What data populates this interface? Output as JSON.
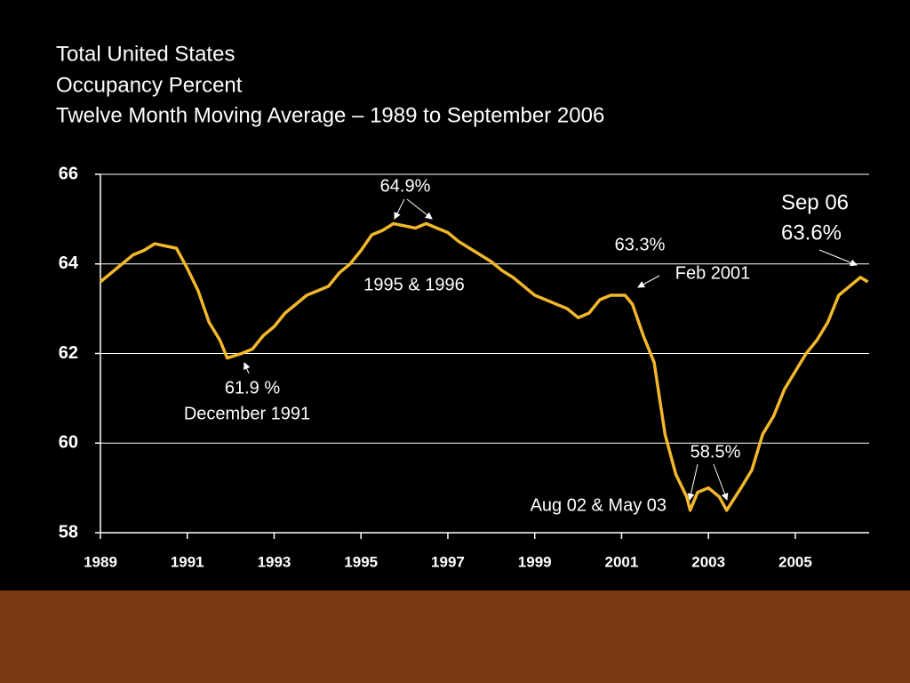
{
  "chart_data": {
    "type": "line",
    "title": [
      "Total United States",
      "Occupancy Percent",
      "Twelve Month Moving Average – 1989 to September 2006"
    ],
    "x": [
      1989.0,
      1989.25,
      1989.5,
      1989.75,
      1990.0,
      1990.25,
      1990.5,
      1990.75,
      1991.0,
      1991.25,
      1991.5,
      1991.75,
      1991.92,
      1992.25,
      1992.5,
      1992.75,
      1993.0,
      1993.25,
      1993.5,
      1993.75,
      1994.0,
      1994.25,
      1994.5,
      1994.75,
      1995.0,
      1995.25,
      1995.5,
      1995.75,
      1996.0,
      1996.25,
      1996.5,
      1996.75,
      1997.0,
      1997.25,
      1997.5,
      1997.75,
      1998.0,
      1998.25,
      1998.5,
      1998.75,
      1999.0,
      1999.25,
      1999.5,
      1999.75,
      2000.0,
      2000.25,
      2000.5,
      2000.75,
      2001.08,
      2001.25,
      2001.5,
      2001.75,
      2002.0,
      2002.25,
      2002.5,
      2002.58,
      2002.75,
      2003.0,
      2003.25,
      2003.42,
      2003.75,
      2004.0,
      2004.25,
      2004.5,
      2004.75,
      2005.0,
      2005.25,
      2005.5,
      2005.75,
      2006.0,
      2006.25,
      2006.5,
      2006.67
    ],
    "series": [
      {
        "name": "Occupancy",
        "color": "#f2b72c",
        "values": [
          63.6,
          63.8,
          64.0,
          64.2,
          64.3,
          64.45,
          64.4,
          64.35,
          63.9,
          63.4,
          62.7,
          62.3,
          61.9,
          62.0,
          62.1,
          62.4,
          62.6,
          62.9,
          63.1,
          63.3,
          63.4,
          63.5,
          63.8,
          64.0,
          64.3,
          64.65,
          64.75,
          64.9,
          64.85,
          64.8,
          64.9,
          64.8,
          64.7,
          64.5,
          64.35,
          64.2,
          64.05,
          63.85,
          63.7,
          63.5,
          63.3,
          63.2,
          63.1,
          63.0,
          62.8,
          62.9,
          63.2,
          63.3,
          63.3,
          63.1,
          62.4,
          61.8,
          60.2,
          59.3,
          58.8,
          58.5,
          58.9,
          59.0,
          58.8,
          58.5,
          59.0,
          59.4,
          60.2,
          60.6,
          61.2,
          61.6,
          62.0,
          62.3,
          62.7,
          63.3,
          63.5,
          63.7,
          63.6
        ]
      }
    ],
    "xlim": [
      1989,
      2006.7
    ],
    "xticks": [
      1989,
      1991,
      1993,
      1995,
      1997,
      1999,
      2001,
      2003,
      2005
    ],
    "ylim": [
      58,
      66
    ],
    "yticks": [
      58,
      60,
      62,
      64,
      66
    ],
    "grid": true,
    "annotations": [
      "64.9%",
      "1995 & 1996",
      "63.3%",
      "Feb 2001",
      "Sep 06",
      "63.6%",
      "61.9 %",
      "December 1991",
      "58.5%",
      "Aug 02 & May 03"
    ]
  }
}
